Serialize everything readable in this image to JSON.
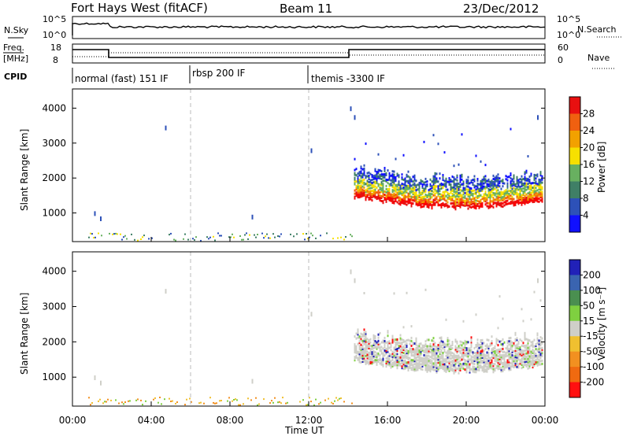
{
  "header": {
    "station": "Fort Hays West (fitACF)",
    "beam": "Beam 11",
    "date": "23/Dec/2012"
  },
  "strips": {
    "nsky_label": "N.Sky",
    "nsearch_label": "N.Search",
    "freq_label_1": "Freq.",
    "freq_label_2": "[MHz]",
    "nave_label": "Nave",
    "cpid_label": "CPID",
    "nsky_ticks": [
      "10^5",
      "10^0"
    ],
    "nsearch_ticks": [
      "10^5",
      "10^0"
    ],
    "freq_ticks": [
      "18",
      "8"
    ],
    "nave_ticks": [
      "60",
      "0"
    ]
  },
  "modes": [
    {
      "label": "normal (fast) 151 IF",
      "start_hour": 0
    },
    {
      "label": "rbsp 200 IF",
      "start_hour": 6
    },
    {
      "label": "themis -3300 IF",
      "start_hour": 12
    }
  ],
  "colors": {
    "power_scale": [
      "#1010ff",
      "#2d51b8",
      "#3f7f66",
      "#68b060",
      "#f7e000",
      "#f2a100",
      "#f06010",
      "#e81010",
      "#ff0000"
    ],
    "velocity_scale": [
      "#2121b8",
      "#3a64b0",
      "#4a8f50",
      "#7fd040",
      "#cfcfc8",
      "#f0c030",
      "#f29020",
      "#f06a10",
      "#ff1010"
    ]
  },
  "chart_data": [
    {
      "type": "heatmap",
      "title": "",
      "ylabel": "Slant Range [km]",
      "xlabel": "Time UT",
      "x_ticks": [
        "00:00",
        "04:00",
        "08:00",
        "12:00",
        "16:00",
        "20:00",
        "00:00"
      ],
      "x_range_hours": [
        0,
        24
      ],
      "y_ticks": [
        1000,
        2000,
        3000,
        4000
      ],
      "ylim": [
        180,
        4550
      ],
      "colorbar_label": "Power [dB]",
      "colorbar_ticks": [
        "4",
        "8",
        "12",
        "16",
        "20",
        "24",
        "28"
      ],
      "colorbar_range": [
        0,
        32
      ],
      "mode_boundaries_hours": [
        6,
        12
      ]
    },
    {
      "type": "heatmap",
      "title": "",
      "ylabel": "Slant Range [km]",
      "xlabel": "Time UT",
      "x_ticks": [
        "00:00",
        "04:00",
        "08:00",
        "12:00",
        "16:00",
        "20:00",
        "00:00"
      ],
      "x_range_hours": [
        0,
        24
      ],
      "y_ticks": [
        1000,
        2000,
        3000,
        4000
      ],
      "ylim": [
        180,
        4550
      ],
      "colorbar_label": "Velocity [m s⁻¹]",
      "colorbar_ticks": [
        "200",
        "100",
        "50",
        "15",
        "-15",
        "-50",
        "-100",
        "-200"
      ],
      "mode_boundaries_hours": [
        6,
        12
      ]
    }
  ]
}
